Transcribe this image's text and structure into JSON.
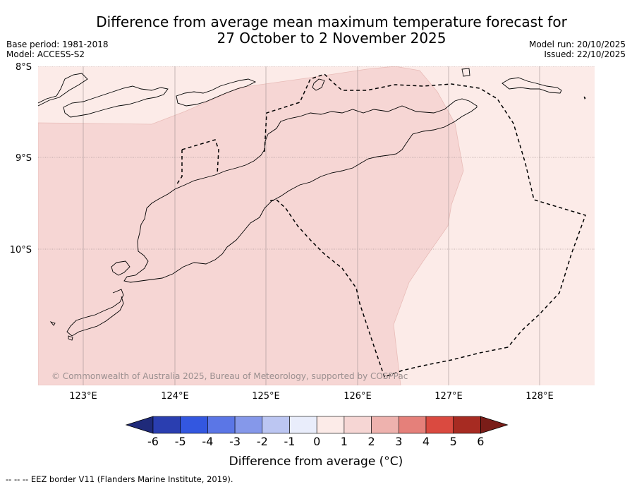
{
  "title_line1": "Difference from average mean maximum temperature forecast for",
  "title_line2": "27 October to 2 November 2025",
  "meta": {
    "base_period": "Base period: 1981-2018",
    "model": "Model: ACCESS-S2",
    "model_run": "Model run: 20/10/2025",
    "issued": "Issued: 22/10/2025"
  },
  "map": {
    "lat_labels": [
      "8°S",
      "9°S",
      "10°S"
    ],
    "lon_labels": [
      "123°E",
      "124°E",
      "125°E",
      "126°E",
      "127°E",
      "128°E"
    ],
    "copyright": "© Commonwealth of Australia 2025, Bureau of Meteorology, supported by COSPPac"
  },
  "colorbar": {
    "tick_labels": [
      "-6",
      "-5",
      "-4",
      "-3",
      "-2",
      "-1",
      "0",
      "1",
      "2",
      "3",
      "4",
      "5",
      "6"
    ],
    "colors": [
      "#1f2a7a",
      "#2a3eb0",
      "#3357e0",
      "#5b76e6",
      "#8598ea",
      "#bcc6f2",
      "#e9edfb",
      "#fcebe8",
      "#f6d6d4",
      "#eeb2ae",
      "#e5807a",
      "#da4a40",
      "#a72b22",
      "#7a1d18"
    ],
    "label": "Difference from average (°C)"
  },
  "footnote": "--  --  -- EEZ border V11 (Flanders Marine Institute, 2019)."
}
